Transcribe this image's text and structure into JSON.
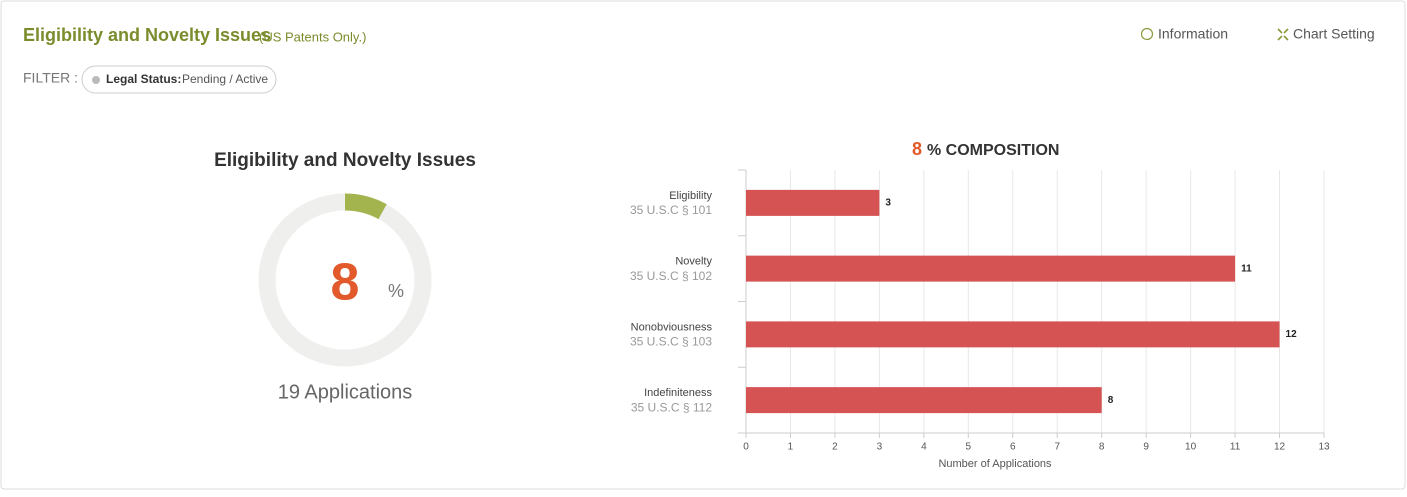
{
  "header": {
    "title": "Eligibility and Novelty Issues",
    "subtitle": "(US Patents Only.)",
    "links": [
      "Information",
      "Chart Setting"
    ]
  },
  "filter": {
    "label": "FILTER :",
    "key": "Legal Status:",
    "value": "Pending / Active"
  },
  "chart_data": [
    {
      "type": "donut",
      "title": "Eligibility and Novelty Issues",
      "value": 8,
      "unit": "%",
      "caption": "19 Applications",
      "color": "#a3b44f",
      "track_color": "#efefed",
      "value_color": "#e25a2b"
    },
    {
      "type": "bar",
      "orientation": "horizontal",
      "title_number": 8,
      "title": "% COMPOSITION",
      "categories": [
        "Eligibility",
        "Novelty",
        "Nonobviousness",
        "Indefiniteness"
      ],
      "category_sublabels": [
        "35 U.S.C § 101",
        "35 U.S.C § 102",
        "35 U.S.C § 103",
        "35 U.S.C § 112"
      ],
      "values": [
        3,
        11,
        12,
        8
      ],
      "color": "#d65353",
      "xlim": [
        0,
        13
      ],
      "xticks": [
        0,
        1,
        2,
        3,
        4,
        5,
        6,
        7,
        8,
        9,
        10,
        11,
        12,
        13
      ],
      "xlabel": "Number of Applications",
      "grid": true
    }
  ]
}
